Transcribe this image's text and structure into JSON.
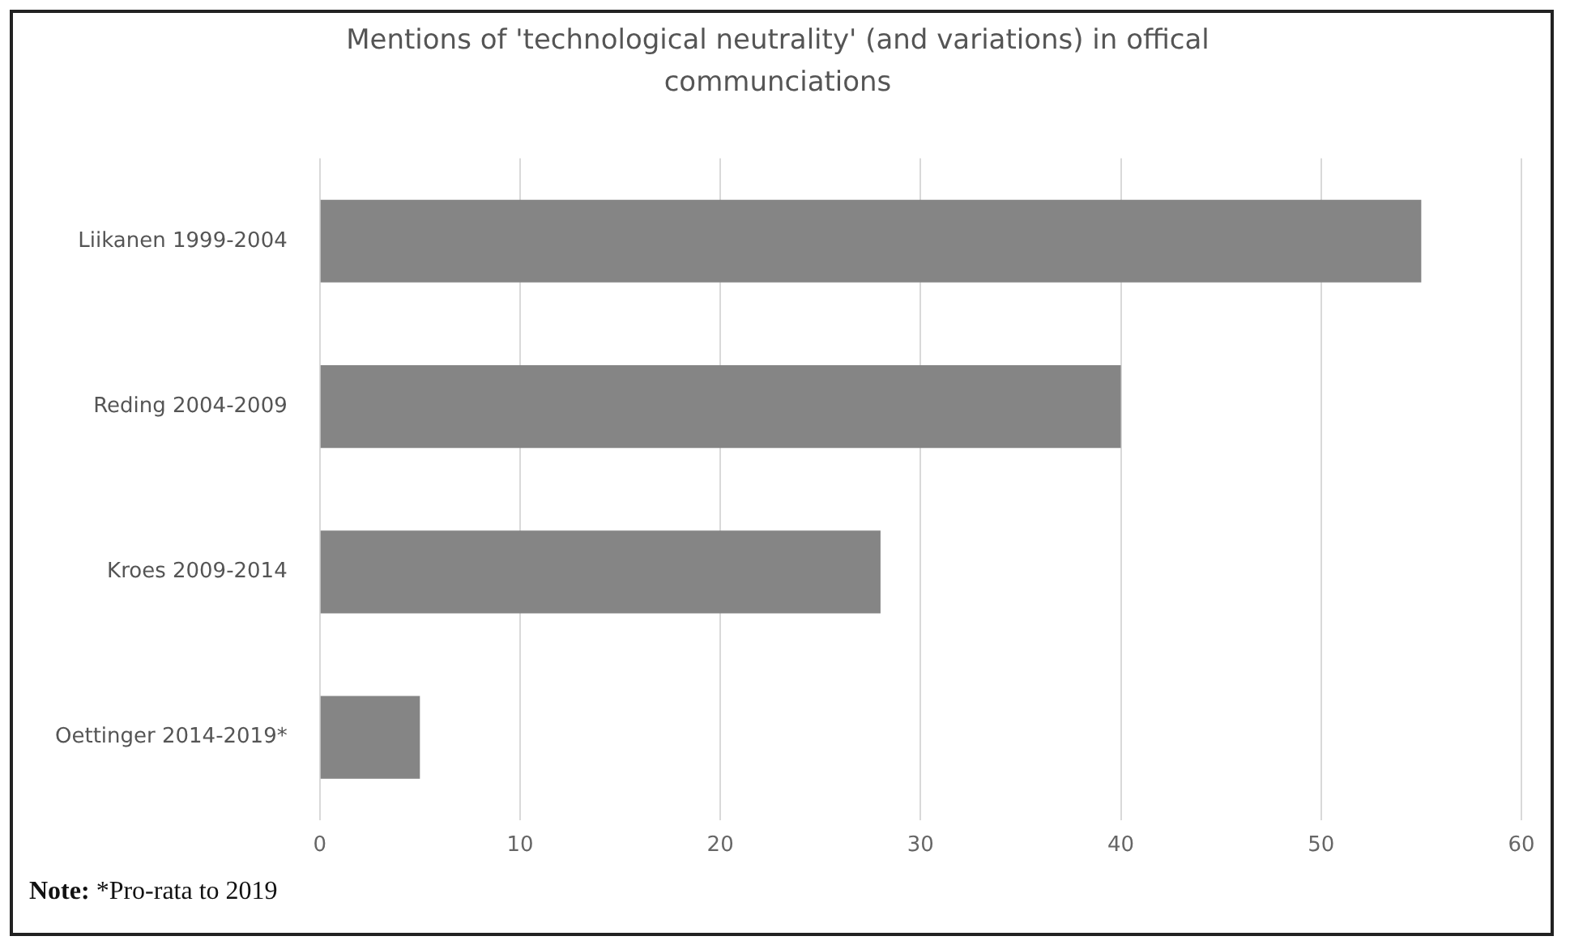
{
  "chart_data": {
    "type": "bar",
    "orientation": "horizontal",
    "title": "Mentions of 'technological neutrality' (and variations) in offical communciations",
    "categories": [
      "Liikanen 1999-2004",
      "Reding 2004-2009",
      "Kroes 2009-2014",
      "Oettinger 2014-2019*"
    ],
    "values": [
      55,
      40,
      28,
      5
    ],
    "color": "#858585",
    "xlim": [
      0,
      60
    ],
    "xticks": [
      0,
      10,
      20,
      30,
      40,
      50,
      60
    ],
    "grid": "x",
    "annotations": [
      "Note: *Pro-rata to 2019"
    ]
  }
}
